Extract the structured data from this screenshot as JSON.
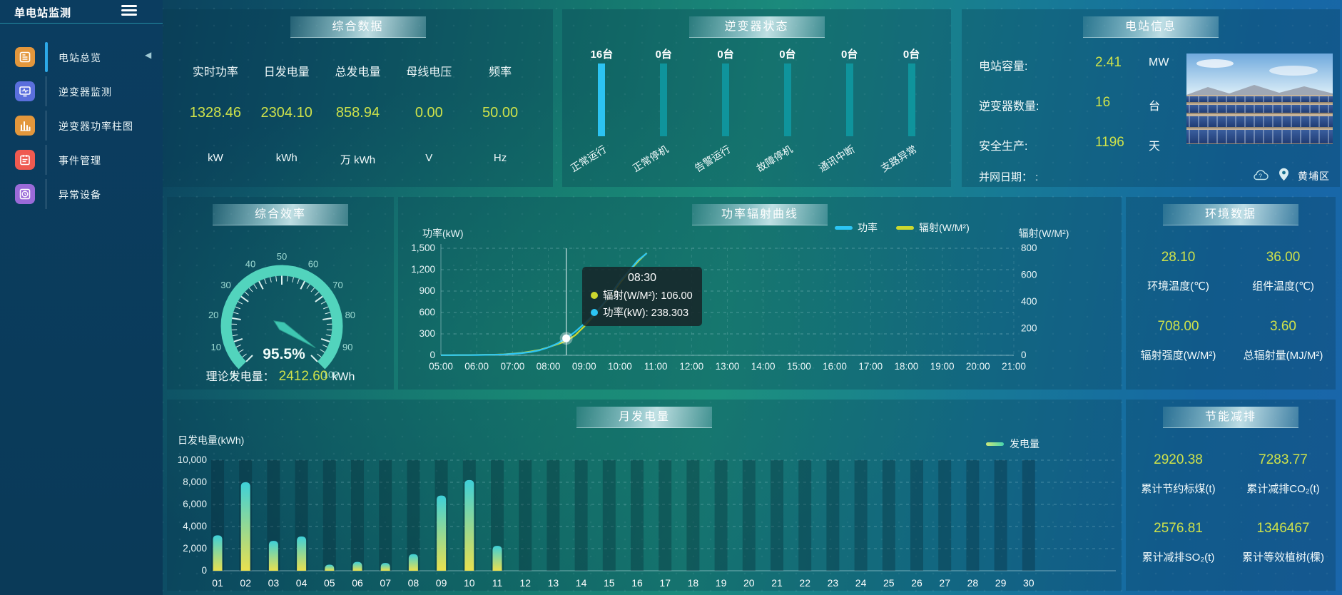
{
  "app": {
    "title": "单电站监测"
  },
  "sidebar": {
    "collapse_icon": "◀",
    "items": [
      {
        "label": "电站总览",
        "icon": "overview",
        "color": "#e3973c",
        "active": true
      },
      {
        "label": "逆变器监测",
        "icon": "inverter-monitor",
        "color": "#5a6fdd",
        "active": false
      },
      {
        "label": "逆变器功率柱图",
        "icon": "inverter-power-bars",
        "color": "#e3973c",
        "active": false
      },
      {
        "label": "事件管理",
        "icon": "event-management",
        "color": "#ef5a50",
        "active": false
      },
      {
        "label": "异常设备",
        "icon": "abnormal-device",
        "color": "#9a6ad8",
        "active": false
      }
    ]
  },
  "panels": {
    "summary": {
      "title": "综合数据",
      "metrics": [
        {
          "label": "实时功率",
          "value": "1328.46",
          "unit": "kW"
        },
        {
          "label": "日发电量",
          "value": "2304.10",
          "unit": "kWh"
        },
        {
          "label": "总发电量",
          "value": "858.94",
          "unit": "万 kWh"
        },
        {
          "label": "母线电压",
          "value": "0.00",
          "unit": "V"
        },
        {
          "label": "频率",
          "value": "50.00",
          "unit": "Hz"
        }
      ]
    },
    "inverter_status": {
      "title": "逆变器状态",
      "items": [
        {
          "count": "16台",
          "label": "正常运行",
          "highlight": true
        },
        {
          "count": "0台",
          "label": "正常停机",
          "highlight": false
        },
        {
          "count": "0台",
          "label": "告警运行",
          "highlight": false
        },
        {
          "count": "0台",
          "label": "故障停机",
          "highlight": false
        },
        {
          "count": "0台",
          "label": "通讯中断",
          "highlight": false
        },
        {
          "count": "0台",
          "label": "支路异常",
          "highlight": false
        }
      ]
    },
    "station_info": {
      "title": "电站信息",
      "rows": [
        {
          "label": "电站容量:",
          "value": "2.41",
          "unit": "MW"
        },
        {
          "label": "逆变器数量:",
          "value": "16",
          "unit": "台"
        },
        {
          "label": "安全生产:",
          "value": "1196",
          "unit": "天"
        }
      ],
      "grid_date_label": "并网日期： :",
      "location": "黄埔区"
    },
    "efficiency": {
      "title": "综合效率",
      "theory_label": "理论发电量：",
      "theory_value": "2412.60",
      "theory_unit": "kWh"
    },
    "power_curve": {
      "title": "功率辐射曲线"
    },
    "environment": {
      "title": "环境数据",
      "metrics": [
        {
          "value": "28.10",
          "label": "环境温度(℃)"
        },
        {
          "value": "36.00",
          "label": "组件温度(℃)"
        },
        {
          "value": "708.00",
          "label": "辐射强度(W/M²)"
        },
        {
          "value": "3.60",
          "label": "总辐射量(MJ/M²)"
        }
      ]
    },
    "monthly": {
      "title": "月发电量"
    },
    "savings": {
      "title": "节能减排",
      "metrics": [
        {
          "value": "2920.38",
          "label": "累计节约标煤(t)"
        },
        {
          "value": "7283.77",
          "label": "累计减排CO₂(t)"
        },
        {
          "value": "2576.81",
          "label": "累计减排SO₂(t)"
        },
        {
          "value": "1346467",
          "label": "累计等效植树(棵)"
        }
      ]
    }
  },
  "colors": {
    "value_yellow": "#cfe24a",
    "power_cyan": "#2cc5f4",
    "radiation_yellow": "#ccd82e",
    "teal_bar": "#0f949c",
    "highlight_bar": "#2cc3f2",
    "gauge_arc": "#52d4bd",
    "bar_gradient_top": "#3ed0d8",
    "bar_gradient_bottom": "#e9e04f"
  },
  "chart_data": [
    {
      "type": "gauge",
      "title": "综合效率",
      "value": 95.5,
      "display": "95.5%",
      "min": 0,
      "max": 100,
      "tick_step": 10
    },
    {
      "type": "line",
      "title": "功率辐射曲线",
      "x_ticks": [
        "05:00",
        "06:00",
        "07:00",
        "08:00",
        "09:00",
        "10:00",
        "11:00",
        "12:00",
        "13:00",
        "14:00",
        "15:00",
        "16:00",
        "17:00",
        "18:00",
        "19:00",
        "20:00",
        "21:00"
      ],
      "x_range_hours": [
        5,
        21
      ],
      "left_axis": {
        "title": "功率(kW)",
        "min": 0,
        "max": 1500,
        "ticks": [
          0,
          300,
          600,
          900,
          1200,
          1500
        ]
      },
      "right_axis": {
        "title": "辐射(W/M²)",
        "min": 0,
        "max": 800,
        "ticks": [
          0,
          200,
          400,
          600,
          800
        ]
      },
      "hours": [
        5,
        5.25,
        5.5,
        5.75,
        6,
        6.25,
        6.5,
        6.75,
        7,
        7.25,
        7.5,
        7.75,
        8,
        8.25,
        8.5,
        8.75,
        9,
        9.25,
        9.5,
        9.75,
        10,
        10.25,
        10.5,
        10.75
      ],
      "series": [
        {
          "name": "功率",
          "axis": "left",
          "color": "#2cc5f4",
          "values": [
            2,
            2,
            3,
            3,
            4,
            6,
            8,
            12,
            20,
            30,
            45,
            70,
            110,
            165,
            238,
            330,
            440,
            560,
            700,
            860,
            1040,
            1180,
            1330,
            1430
          ]
        },
        {
          "name": "辐射(W/M²)",
          "axis": "right",
          "color": "#ccd82e",
          "values": [
            1,
            1,
            2,
            2,
            3,
            4,
            5,
            7,
            12,
            18,
            28,
            40,
            60,
            82,
            106,
            150,
            215,
            290,
            370,
            450,
            540,
            625,
            700,
            765
          ]
        }
      ],
      "marker": {
        "hour": 8.5
      },
      "tooltip": {
        "time": "08:30",
        "rows": [
          {
            "color": "#ccd82e",
            "label": "辐射(W/M²)",
            "value": "106.00"
          },
          {
            "color": "#2cc5f4",
            "label": "功率(kW)",
            "value": "238.303"
          }
        ]
      }
    },
    {
      "type": "bar",
      "title": "月发电量",
      "ylabel": "日发电量(kWh)",
      "legend": "发电量",
      "categories": [
        "01",
        "02",
        "03",
        "04",
        "05",
        "06",
        "07",
        "08",
        "09",
        "10",
        "11",
        "12",
        "13",
        "14",
        "15",
        "16",
        "17",
        "18",
        "19",
        "20",
        "21",
        "22",
        "23",
        "24",
        "25",
        "26",
        "27",
        "28",
        "29",
        "30"
      ],
      "values": [
        3200,
        8000,
        2700,
        3100,
        550,
        800,
        700,
        1500,
        6800,
        8200,
        2250,
        0,
        0,
        0,
        0,
        0,
        0,
        0,
        0,
        0,
        0,
        0,
        0,
        0,
        0,
        0,
        0,
        0,
        0,
        0
      ],
      "ylim": [
        0,
        10000
      ],
      "yticks": [
        0,
        2000,
        4000,
        6000,
        8000,
        10000
      ]
    },
    {
      "type": "bar",
      "title": "逆变器状态",
      "unit": "台",
      "categories": [
        "正常运行",
        "正常停机",
        "告警运行",
        "故障停机",
        "通讯中断",
        "支路异常"
      ],
      "values": [
        16,
        0,
        0,
        0,
        0,
        0
      ]
    }
  ]
}
